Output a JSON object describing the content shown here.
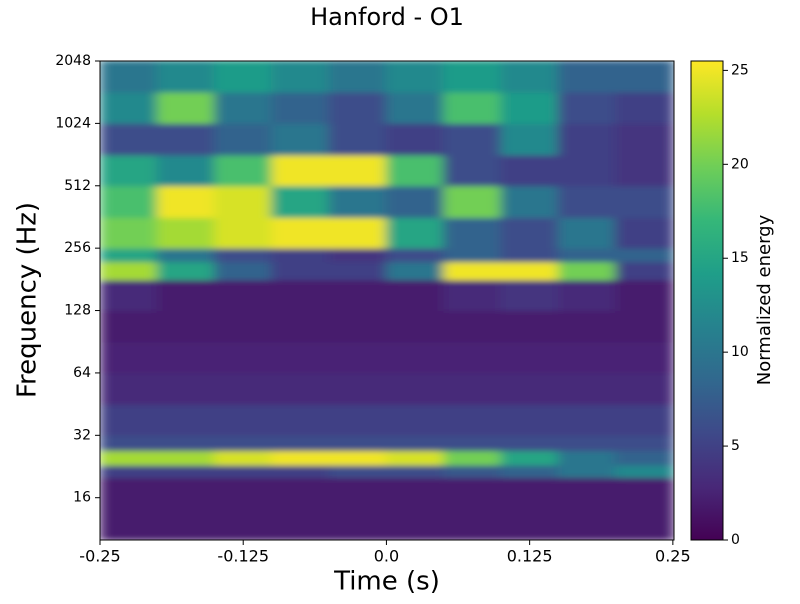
{
  "chart_data": {
    "type": "heatmap",
    "title": "Hanford - O1",
    "x_label": "Time (s)",
    "y_label": "Frequency (Hz)",
    "colorbar_label": "Normalized energy",
    "colormap": "viridis",
    "y_scale": "log2",
    "xlim": [
      -0.25,
      0.251
    ],
    "xticks": [
      -0.25,
      -0.125,
      {
        "value": 0,
        "label": "0.0"
      },
      0.125,
      0.25
    ],
    "ylim": [
      10,
      2048
    ],
    "yticks": [
      16,
      32,
      64,
      128,
      256,
      512,
      1024,
      2048
    ],
    "clim": [
      0,
      25.5
    ],
    "cticks": [
      0,
      5,
      10,
      15,
      20,
      25
    ],
    "xbins": [
      -0.25,
      -0.2,
      -0.15,
      -0.1,
      -0.05,
      0,
      0.05,
      0.1,
      0.15,
      0.2,
      0.251
    ],
    "ybins": [
      10,
      16,
      20,
      23,
      27,
      32,
      45,
      64,
      90,
      128,
      180,
      220,
      256,
      360,
      512,
      720,
      1024,
      1448,
      2048
    ],
    "z": [
      [
        2,
        2,
        2,
        2,
        2,
        2,
        2,
        2,
        2,
        2
      ],
      [
        2,
        2,
        2,
        2,
        2,
        2,
        2,
        2,
        2,
        2
      ],
      [
        5,
        5,
        5,
        5,
        6,
        6,
        7,
        8,
        10,
        12
      ],
      [
        22,
        22,
        24,
        25,
        25,
        24,
        20,
        15,
        10,
        8
      ],
      [
        6,
        6,
        6,
        6,
        6,
        6,
        6,
        6,
        6,
        6
      ],
      [
        5,
        5,
        5,
        5,
        5,
        5,
        5,
        5,
        5,
        5
      ],
      [
        3,
        3,
        3,
        3,
        3,
        3,
        3,
        3,
        3,
        3
      ],
      [
        2.5,
        2.5,
        2.5,
        2.5,
        2.5,
        2.5,
        2.5,
        2.5,
        2.5,
        2.5
      ],
      [
        2,
        2,
        2,
        2,
        2,
        2,
        2,
        2,
        2,
        2
      ],
      [
        3,
        2,
        2,
        2,
        2,
        2,
        3,
        4,
        3,
        2
      ],
      [
        22,
        15,
        8,
        5,
        5,
        10,
        25,
        25,
        20,
        5
      ],
      [
        15,
        10,
        6,
        5,
        4,
        6,
        8,
        6,
        8,
        8
      ],
      [
        20,
        22,
        24,
        25,
        25,
        15,
        8,
        6,
        10,
        5
      ],
      [
        18,
        25,
        24,
        15,
        10,
        8,
        20,
        10,
        6,
        6
      ],
      [
        15,
        12,
        18,
        25,
        25,
        18,
        6,
        5,
        5,
        4
      ],
      [
        6,
        6,
        8,
        10,
        6,
        5,
        6,
        12,
        5,
        4
      ],
      [
        12,
        20,
        10,
        8,
        6,
        10,
        18,
        14,
        6,
        5
      ],
      [
        10,
        12,
        14,
        12,
        10,
        12,
        14,
        12,
        8,
        8
      ]
    ]
  }
}
